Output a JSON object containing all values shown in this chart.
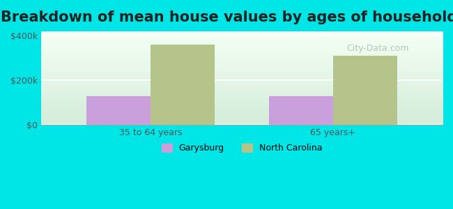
{
  "title": "Breakdown of mean house values by ages of householders",
  "categories": [
    "35 to 64 years",
    "65 years+"
  ],
  "series": {
    "Garysburg": [
      130000,
      130000
    ],
    "North Carolina": [
      360000,
      310000
    ]
  },
  "colors": {
    "Garysburg": "#c9a0dc",
    "North Carolina": "#b5c48a"
  },
  "ylim": [
    0,
    420000
  ],
  "ytick_labels": [
    "$0",
    "$200k",
    "$400k"
  ],
  "ytick_values": [
    0,
    200000,
    400000
  ],
  "background_color": "#00e5e5",
  "title_fontsize": 15,
  "bar_width": 0.35,
  "legend_labels": [
    "Garysburg",
    "North Carolina"
  ],
  "watermark": "City-Data.com"
}
